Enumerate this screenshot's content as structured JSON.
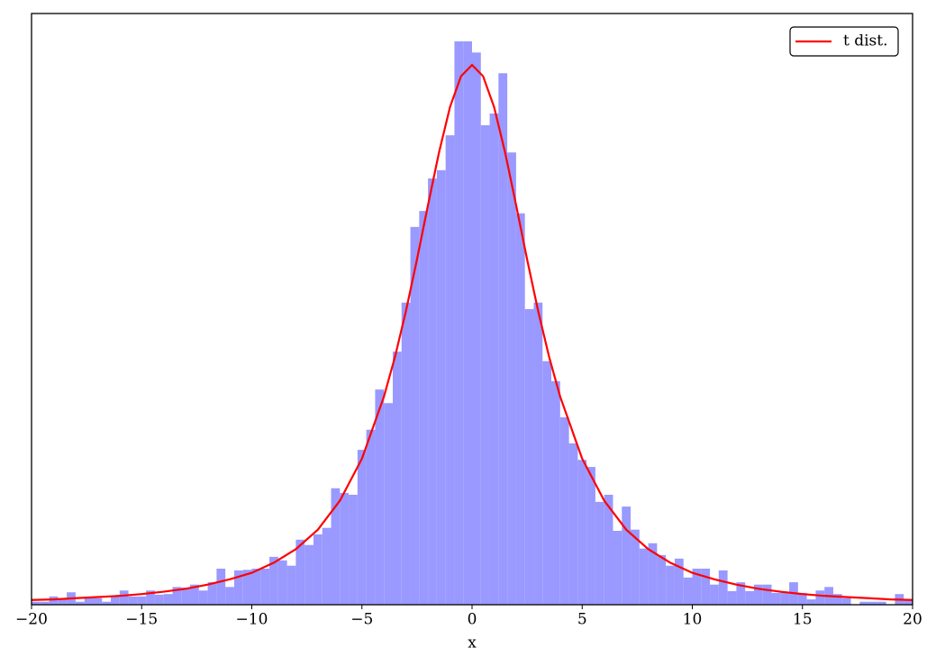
{
  "chart_data": {
    "type": "histogram",
    "xlabel": "x",
    "bins": [
      -20,
      -19.6,
      -19.2,
      -18.8,
      -18.4,
      -18,
      -17.6,
      -17.2,
      -16.8,
      -16.4,
      -16,
      -15.6,
      -15.2,
      -14.8,
      -14.4,
      -14,
      -13.6,
      -13.2,
      -12.8,
      -12.4,
      -12,
      -11.6,
      -11.2,
      -10.8,
      -10.4,
      -10,
      -9.6,
      -9.2,
      -8.8,
      -8.4,
      -8,
      -7.6,
      -7.2,
      -6.8,
      -6.4,
      -6,
      -5.6,
      -5.2,
      -4.8,
      -4.4,
      -4,
      -3.6,
      -3.2,
      -2.8,
      -2.4,
      -2,
      -1.6,
      -1.2,
      -0.8,
      -0.4,
      0,
      0.4,
      0.8,
      1.2,
      1.6,
      2,
      2.4,
      2.8,
      3.2,
      3.6,
      4,
      4.4,
      4.8,
      5.2,
      5.6,
      6,
      6.4,
      6.8,
      7.2,
      7.6,
      8,
      8.4,
      8.8,
      9.2,
      9.6,
      10,
      10.4,
      10.8,
      11.2,
      11.6,
      12,
      12.4,
      12.8,
      13.2,
      13.6,
      14,
      14.4,
      14.8,
      15.2,
      15.6,
      16,
      16.4,
      16.8,
      17.2,
      17.6,
      18,
      18.4,
      18.8,
      19.2,
      19.6,
      20
    ],
    "values": [
      0.0005,
      0.0005,
      0.0014,
      0.0011,
      0.0021,
      0.0005,
      0.0011,
      0.0011,
      0.0005,
      0.0014,
      0.0024,
      0.0014,
      0.0014,
      0.0024,
      0.0017,
      0.0018,
      0.003,
      0.0029,
      0.0034,
      0.0024,
      0.0038,
      0.0061,
      0.003,
      0.0058,
      0.0059,
      0.0061,
      0.0061,
      0.0081,
      0.0075,
      0.0066,
      0.011,
      0.0101,
      0.0119,
      0.013,
      0.0197,
      0.0189,
      0.0186,
      0.0262,
      0.0296,
      0.0364,
      0.0341,
      0.0428,
      0.0511,
      0.0639,
      0.0666,
      0.0721,
      0.0735,
      0.0794,
      0.0953,
      0.0953,
      0.0934,
      0.0811,
      0.0831,
      0.0899,
      0.0765,
      0.0662,
      0.05,
      0.0511,
      0.0412,
      0.0378,
      0.0317,
      0.0273,
      0.0245,
      0.0233,
      0.0174,
      0.0186,
      0.0125,
      0.0166,
      0.0127,
      0.0095,
      0.0104,
      0.0084,
      0.0066,
      0.0078,
      0.0046,
      0.0061,
      0.0061,
      0.0034,
      0.0058,
      0.0023,
      0.0038,
      0.0023,
      0.0034,
      0.0034,
      0.002,
      0.0021,
      0.0038,
      0.002,
      0.0009,
      0.0024,
      0.003,
      0.0018,
      0.0011,
      0,
      0.0005,
      0.0005,
      0.0005,
      0,
      0.0018,
      0.0009
    ],
    "color": "#9999ff",
    "xlim": [
      -20,
      20
    ],
    "ylim": [
      0,
      0.1
    ],
    "xticks": [
      {
        "value": -20,
        "label": "−20"
      },
      {
        "value": -15,
        "label": "−15"
      },
      {
        "value": -10,
        "label": "−10"
      },
      {
        "value": -5,
        "label": "−5"
      },
      0,
      5,
      10,
      15,
      20
    ],
    "legend": "upper right",
    "lines": [
      {
        "name": "t dist.",
        "color": "#ff0000",
        "x": [
          -20,
          -19,
          -18,
          -17,
          -16,
          -15,
          -14,
          -13,
          -12,
          -11,
          -10,
          -9,
          -8,
          -7,
          -6,
          -5,
          -4,
          -3.5,
          -3,
          -2.5,
          -2,
          -1.5,
          -1,
          -0.5,
          0,
          0.5,
          1,
          1.5,
          2,
          2.5,
          3,
          3.5,
          4,
          5,
          6,
          7,
          8,
          9,
          10,
          11,
          12,
          13,
          14,
          15,
          16,
          17,
          18,
          19,
          20
        ],
        "values": [
          0.0008,
          0.0009,
          0.0011,
          0.0013,
          0.0015,
          0.0018,
          0.0022,
          0.0027,
          0.0034,
          0.0043,
          0.0054,
          0.0071,
          0.0094,
          0.0127,
          0.0176,
          0.0247,
          0.0352,
          0.0419,
          0.0497,
          0.0584,
          0.0676,
          0.0765,
          0.0842,
          0.0894,
          0.0913,
          0.0894,
          0.0842,
          0.0765,
          0.0676,
          0.0584,
          0.0497,
          0.0419,
          0.0352,
          0.0247,
          0.0176,
          0.0127,
          0.0094,
          0.0071,
          0.0054,
          0.0043,
          0.0034,
          0.0027,
          0.0022,
          0.0018,
          0.0015,
          0.0013,
          0.0011,
          0.0009,
          0.0008
        ]
      }
    ]
  }
}
